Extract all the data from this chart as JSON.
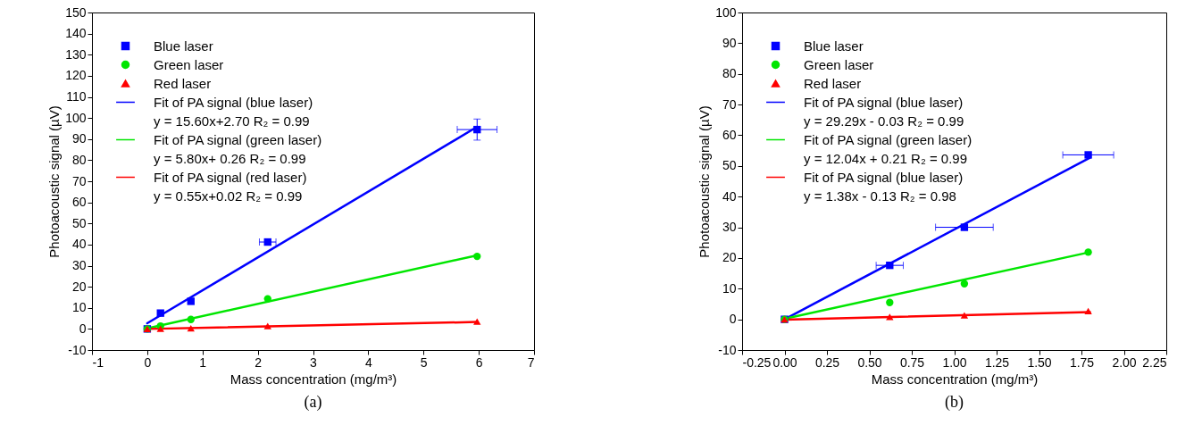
{
  "chart_data": [
    {
      "type": "scatter",
      "title": "(a)",
      "xlabel": "Mass concentration (mg/m³)",
      "ylabel": "Photoacoustic signal (µV)",
      "xlim": [
        -1,
        7
      ],
      "xticks": [
        -1,
        0,
        1,
        2,
        3,
        4,
        5,
        6,
        7
      ],
      "ylim": [
        -10,
        150
      ],
      "yticks": [
        -10,
        0,
        10,
        20,
        30,
        40,
        50,
        60,
        70,
        80,
        90,
        100,
        110,
        120,
        130,
        140,
        150
      ],
      "legend": "top left",
      "annotations": [
        "y = 15.60x+2.70      R₂ = 0.99",
        "y = 5.80x+ 0.26      R₂ = 0.99",
        "y = 0.55x+0.02      R₂ = 0.99"
      ],
      "series": [
        {
          "name": "Blue laser",
          "type": "scatter",
          "marker": "square",
          "color": "#0000ff",
          "x": [
            0,
            0.24,
            0.79,
            2.18,
            5.97
          ],
          "values": [
            0,
            7.5,
            13.1,
            41.2,
            94.5
          ],
          "xerrors": [
            null,
            null,
            null,
            0.15,
            0.36
          ],
          "errors": [
            null,
            null,
            null,
            null,
            5
          ]
        },
        {
          "name": "Green laser",
          "type": "scatter",
          "marker": "circle",
          "color": "#00e600",
          "x": [
            0,
            0.24,
            0.79,
            2.18,
            5.97
          ],
          "values": [
            0,
            1.4,
            4.5,
            14.3,
            34.4
          ]
        },
        {
          "name": "Red laser",
          "type": "scatter",
          "marker": "triangle",
          "color": "#ff0000",
          "x": [
            0,
            0.24,
            0.79,
            2.18,
            5.97
          ],
          "values": [
            0,
            0.1,
            0.3,
            1.4,
            3.5
          ]
        },
        {
          "name": "Fit of PA signal (blue laser)",
          "type": "line",
          "marker": "none",
          "color": "#0000ff",
          "x": [
            0,
            5.97
          ],
          "values": [
            2.7,
            95.8
          ]
        },
        {
          "name": "Fit of PA signal (green laser)",
          "type": "line",
          "marker": "none",
          "color": "#00e600",
          "x": [
            0,
            5.97
          ],
          "values": [
            0.3,
            34.9
          ]
        },
        {
          "name": "Fit of PA signal (red laser)",
          "type": "line",
          "marker": "none",
          "color": "#ff0000",
          "x": [
            0,
            5.97
          ],
          "values": [
            0.0,
            3.3
          ]
        }
      ]
    },
    {
      "type": "scatter",
      "title": "(b)",
      "xlabel": "Mass concentration (mg/m³)",
      "ylabel": "Photoacoustic signal (µV)",
      "xlim": [
        -0.25,
        2.25
      ],
      "xticks": [
        -0.25,
        {
          "value": 0,
          "label": "0.00"
        },
        0.25,
        {
          "value": 0.5,
          "label": "0.50"
        },
        0.75,
        {
          "value": 1,
          "label": "1.00"
        },
        1.25,
        {
          "value": 1.5,
          "label": "1.50"
        },
        1.75,
        {
          "value": 2,
          "label": "2.00"
        },
        2.25
      ],
      "ylim": [
        -10,
        100
      ],
      "yticks": [
        -10,
        0,
        10,
        20,
        30,
        40,
        50,
        60,
        70,
        80,
        90,
        100
      ],
      "legend": "top left",
      "annotations": [
        "y = 29.29x - 0.03      R₂ = 0.99",
        "y = 12.04x + 0.21      R₂ = 0.99",
        "y = 1.38x - 0.13      R₂ = 0.98"
      ],
      "series": [
        {
          "name": "Blue laser",
          "type": "scatter",
          "marker": "square",
          "color": "#0000ff",
          "x": [
            0,
            0.62,
            1.06,
            1.79
          ],
          "values": [
            0,
            17.6,
            30.0,
            53.6
          ],
          "xerrors": [
            null,
            0.08,
            0.17,
            0.15
          ]
        },
        {
          "name": "Green laser",
          "type": "scatter",
          "marker": "circle",
          "color": "#00e600",
          "x": [
            0,
            0.62,
            1.06,
            1.79
          ],
          "values": [
            0,
            5.5,
            11.6,
            21.9
          ]
        },
        {
          "name": "Red laser",
          "type": "scatter",
          "marker": "triangle",
          "color": "#ff0000",
          "x": [
            0,
            0.62,
            1.06,
            1.79
          ],
          "values": [
            0,
            0.8,
            1.3,
            2.7
          ]
        },
        {
          "name": "Fit of PA signal (blue laser)",
          "type": "line",
          "marker": "none",
          "color": "#0000ff",
          "x": [
            0,
            1.8
          ],
          "values": [
            0.0,
            52.7
          ]
        },
        {
          "name": "Fit of PA signal (green laser)",
          "type": "line",
          "marker": "none",
          "color": "#00e600",
          "x": [
            0,
            1.8
          ],
          "values": [
            0.2,
            21.9
          ]
        },
        {
          "name": "Fit of PA signal (blue laser)",
          "type": "line",
          "marker": "none",
          "color": "#ff0000",
          "x": [
            0,
            1.8
          ],
          "values": [
            -0.1,
            2.4
          ]
        }
      ]
    }
  ]
}
